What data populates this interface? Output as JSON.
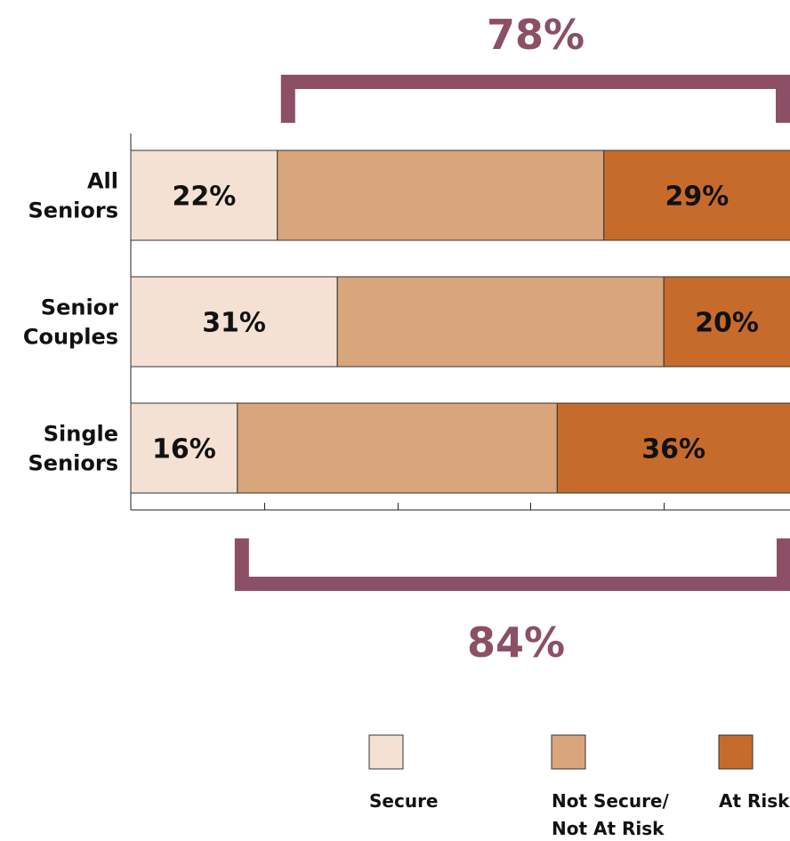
{
  "chart_data": {
    "type": "bar",
    "orientation": "horizontal",
    "stacked": true,
    "categories": [
      [
        "All",
        "Seniors"
      ],
      [
        "Senior",
        "Couples"
      ],
      [
        "Single",
        "Seniors"
      ]
    ],
    "series": [
      {
        "name": "Secure",
        "values": [
          22,
          31,
          16
        ],
        "color": "#f4e1d4",
        "labels": [
          "22%",
          "31%",
          "16%"
        ]
      },
      {
        "name": "Not Secure/ Not At Risk",
        "values": [
          49,
          49,
          48
        ],
        "color": "#d9a57b",
        "labels": [
          "",
          "",
          ""
        ]
      },
      {
        "name": "At Risk",
        "values": [
          29,
          20,
          36
        ],
        "color": "#c76b2c",
        "labels": [
          "29%",
          "20%",
          "36%"
        ]
      }
    ],
    "xlim": [
      0,
      100
    ],
    "brackets": [
      {
        "label": "78%",
        "from_category": 0,
        "start_value": 22,
        "position": "top"
      },
      {
        "label": "84%",
        "from_category": 2,
        "start_value": 16,
        "position": "bottom"
      }
    ],
    "bracket_color": "#8b5066",
    "legend": {
      "position": "bottom",
      "items": [
        {
          "label_lines": [
            "Secure"
          ],
          "color": "#f4e1d4"
        },
        {
          "label_lines": [
            "Not Secure/",
            "Not At Risk"
          ],
          "color": "#d9a57b"
        },
        {
          "label_lines": [
            "At Risk"
          ],
          "color": "#c76b2c"
        }
      ]
    },
    "grid": false
  }
}
